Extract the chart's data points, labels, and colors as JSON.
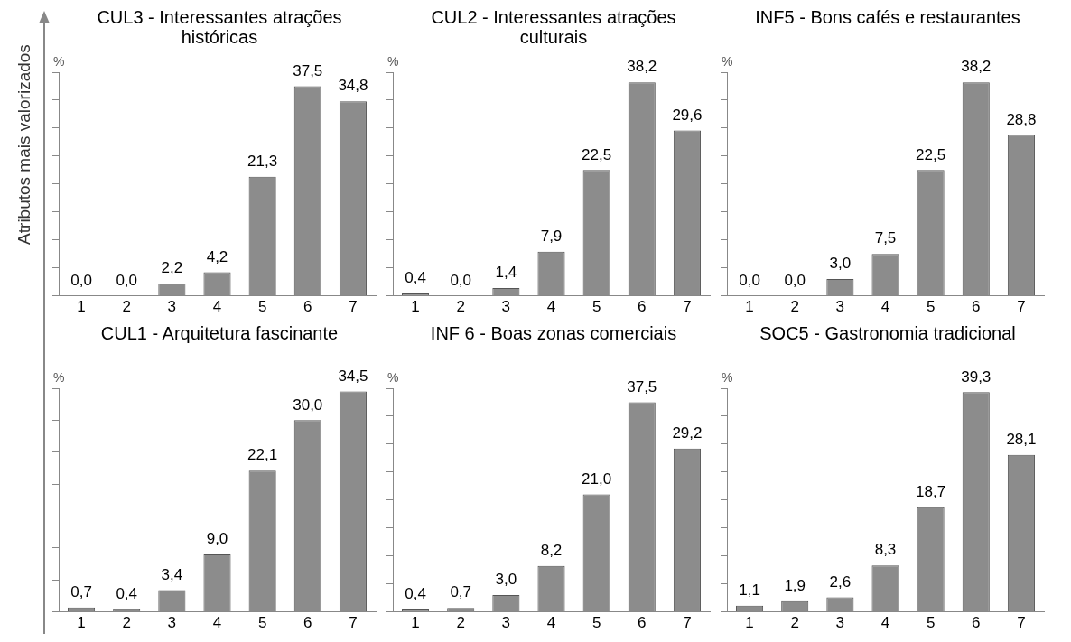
{
  "chart_data": [
    {
      "type": "bar",
      "title": "CUL3 - Interessantes atrações históricas",
      "ylabel": "%",
      "annotations": [
        "Atributos mais valorizados"
      ],
      "categories": [
        "1",
        "2",
        "3",
        "4",
        "5",
        "6",
        "7"
      ],
      "values": [
        0.0,
        0.0,
        2.2,
        4.2,
        21.3,
        37.5,
        34.8
      ],
      "value_labels": [
        "0,0",
        "0,0",
        "2,2",
        "4,2",
        "21,3",
        "37,5",
        "34,8"
      ],
      "color": "#8c8c8c",
      "legend": false,
      "grid": false
    },
    {
      "type": "bar",
      "title": "CUL2 - Interessantes atrações culturais",
      "ylabel": "%",
      "categories": [
        "1",
        "2",
        "3",
        "4",
        "5",
        "6",
        "7"
      ],
      "values": [
        0.4,
        0.0,
        1.4,
        7.9,
        22.5,
        38.2,
        29.6
      ],
      "value_labels": [
        "0,4",
        "0,0",
        "1,4",
        "7,9",
        "22,5",
        "38,2",
        "29,6"
      ],
      "color": "#8c8c8c",
      "legend": false,
      "grid": false
    },
    {
      "type": "bar",
      "title": "INF5 - Bons cafés e restaurantes",
      "ylabel": "%",
      "categories": [
        "1",
        "2",
        "3",
        "4",
        "5",
        "6",
        "7"
      ],
      "values": [
        0.0,
        0.0,
        3.0,
        7.5,
        22.5,
        38.2,
        28.8
      ],
      "value_labels": [
        "0,0",
        "0,0",
        "3,0",
        "7,5",
        "22,5",
        "38,2",
        "28,8"
      ],
      "color": "#8c8c8c",
      "legend": false,
      "grid": false
    },
    {
      "type": "bar",
      "title": "CUL1 - Arquitetura fascinante",
      "ylabel": "%",
      "categories": [
        "1",
        "2",
        "3",
        "4",
        "5",
        "6",
        "7"
      ],
      "values": [
        0.7,
        0.4,
        3.4,
        9.0,
        22.1,
        30.0,
        34.5
      ],
      "value_labels": [
        "0,7",
        "0,4",
        "3,4",
        "9,0",
        "22,1",
        "30,0",
        "34,5"
      ],
      "color": "#8c8c8c",
      "legend": false,
      "grid": false
    },
    {
      "type": "bar",
      "title": "INF 6 - Boas zonas comerciais",
      "ylabel": "%",
      "categories": [
        "1",
        "2",
        "3",
        "4",
        "5",
        "6",
        "7"
      ],
      "values": [
        0.4,
        0.7,
        3.0,
        8.2,
        21.0,
        37.5,
        29.2
      ],
      "value_labels": [
        "0,4",
        "0,7",
        "3,0",
        "8,2",
        "21,0",
        "37,5",
        "29,2"
      ],
      "color": "#8c8c8c",
      "legend": false,
      "grid": false
    },
    {
      "type": "bar",
      "title": "SOC5 - Gastronomia tradicional",
      "ylabel": "%",
      "categories": [
        "1",
        "2",
        "3",
        "4",
        "5",
        "6",
        "7"
      ],
      "values": [
        1.1,
        1.9,
        2.6,
        8.3,
        18.7,
        39.3,
        28.1
      ],
      "value_labels": [
        "1,1",
        "1,9",
        "2,6",
        "8,3",
        "18,7",
        "39,3",
        "28,1"
      ],
      "color": "#8c8c8c",
      "legend": false,
      "grid": false
    }
  ]
}
